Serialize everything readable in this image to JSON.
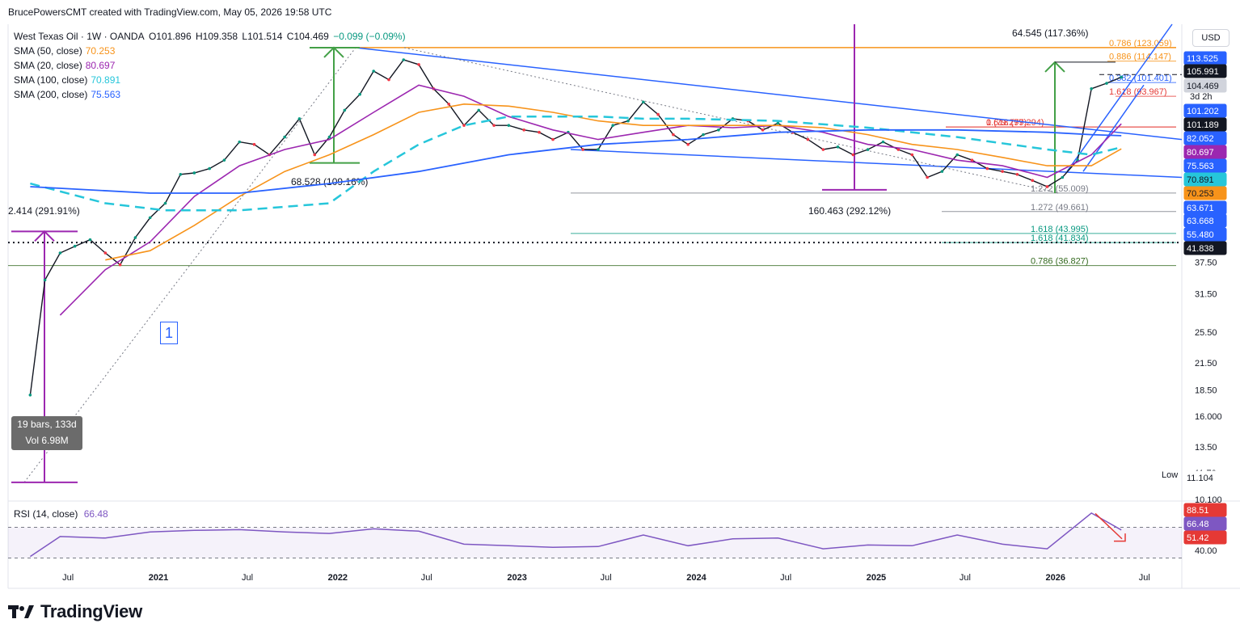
{
  "header": {
    "credit": "BrucePowersCMT created with TradingView.com, May 05, 2026 19:58 UTC"
  },
  "symbol": {
    "name": "West Texas Oil · 1W · OANDA",
    "open": "O101.896",
    "high": "H109.358",
    "low": "L101.514",
    "close": "C104.469",
    "change": "−0.099 (−0.09%)"
  },
  "indicators": [
    {
      "label": "SMA (50, close)",
      "value": "70.253",
      "color": "#f7931a"
    },
    {
      "label": "SMA (20, close)",
      "value": "80.697",
      "color": "#9c27b0"
    },
    {
      "label": "SMA (100, close)",
      "value": "70.891",
      "color": "#26c6da"
    },
    {
      "label": "SMA (200, close)",
      "value": "75.563",
      "color": "#2962ff"
    }
  ],
  "currency_button": "USD",
  "rsi": {
    "label": "RSI (14, close)",
    "value": "66.48",
    "color": "#7e57c2"
  },
  "brand": "TradingView",
  "annotations": {
    "wave_label": "1",
    "measure_line1": "19 bars, 133d",
    "measure_line2": "Vol 6.98M",
    "move_2020_pct": "2.414 (291.91%)",
    "move_2021_2022": "68.528 (109.16%)",
    "move_total": "160.463 (292.12%)",
    "move_2026": "64.545 (117.36%)",
    "low_label": "Low"
  },
  "fib_labels": [
    {
      "text": "0.786 (123.059)",
      "price": 123.059,
      "color": "#f7931a"
    },
    {
      "text": "0.886 (114.147)",
      "price": 114.147,
      "color": "#f7931a"
    },
    {
      "text": "0.382 (101.401)",
      "price": 101.401,
      "color": "#2962ff"
    },
    {
      "text": "1.618 (93.967)",
      "price": 93.967,
      "color": "#e53935"
    },
    {
      "text": "0.618 (79.294)",
      "price": 79.294,
      "color": "#e53935"
    },
    {
      "text": "1 (79.297)",
      "price": 79.297,
      "color": "#e53935"
    },
    {
      "text": "1.272 (55.009)",
      "price": 55.009,
      "color": "#787b86"
    },
    {
      "text": "1.272 (49.661)",
      "price": 49.661,
      "color": "#787b86"
    },
    {
      "text": "1.618 (43.995)",
      "price": 43.995,
      "color": "#089981"
    },
    {
      "text": "1.618 (41.834)",
      "price": 41.834,
      "color": "#089981"
    },
    {
      "text": "0.786 (36.827)",
      "price": 36.827,
      "color": "#33691e"
    }
  ],
  "price_axis_labels": [
    {
      "text": "113.525",
      "bg": "#2962ff",
      "fg": "#ffffff",
      "price": 113.525
    },
    {
      "text": "105.991",
      "bg": "#131722",
      "fg": "#ffffff",
      "price": 105.991
    },
    {
      "text": "104.469",
      "bg": "#d1d4dc",
      "fg": "#131722",
      "price": 104.469,
      "sub": "3d 2h"
    },
    {
      "text": "101.202",
      "bg": "#2962ff",
      "fg": "#ffffff",
      "price": 101.202
    },
    {
      "text": "101.189",
      "bg": "#131722",
      "fg": "#ffffff",
      "price": 101.189
    },
    {
      "text": "82.052",
      "bg": "#2962ff",
      "fg": "#ffffff",
      "price": 82.052
    },
    {
      "text": "80.697",
      "bg": "#9c27b0",
      "fg": "#ffffff",
      "price": 80.697
    },
    {
      "text": "75.563",
      "bg": "#2962ff",
      "fg": "#ffffff",
      "price": 75.563
    },
    {
      "text": "70.891",
      "bg": "#26c6da",
      "fg": "#131722",
      "price": 70.891
    },
    {
      "text": "70.253",
      "bg": "#f7931a",
      "fg": "#131722",
      "price": 70.253
    },
    {
      "text": "63.671",
      "bg": "#2962ff",
      "fg": "#ffffff",
      "price": 63.671
    },
    {
      "text": "63.668",
      "bg": "#2962ff",
      "fg": "#ffffff",
      "price": 63.668
    },
    {
      "text": "55.480",
      "bg": "#2962ff",
      "fg": "#ffffff",
      "price": 55.48
    },
    {
      "text": "41.838",
      "bg": "#131722",
      "fg": "#ffffff",
      "price": 41.838
    },
    {
      "text": "11.104",
      "bg": "#ffffff",
      "fg": "#131722",
      "price": 11.104
    }
  ],
  "rsi_axis_labels": [
    {
      "text": "88.51",
      "bg": "#e53935",
      "fg": "#ffffff",
      "value": 88.51
    },
    {
      "text": "66.48",
      "bg": "#7e57c2",
      "fg": "#ffffff",
      "value": 66.48
    },
    {
      "text": "51.42",
      "bg": "#e53935",
      "fg": "#ffffff",
      "value": 51.42
    }
  ],
  "chart_data": {
    "type": "line",
    "scale": "log",
    "ylim": [
      10.1,
      140
    ],
    "y_ticks": [
      37.5,
      31.5,
      25.5,
      21.5,
      18.5,
      16.0,
      13.5,
      11.7,
      10.1
    ],
    "x_ticks": [
      "Jul",
      "2021",
      "Jul",
      "2022",
      "Jul",
      "2023",
      "Jul",
      "2024",
      "Jul",
      "2025",
      "Jul",
      "2026",
      "Jul"
    ],
    "rsi_ticks": [
      40.0
    ],
    "series": [
      {
        "name": "West Texas Oil",
        "x": [
          "2020-04",
          "2020-05",
          "2020-06",
          "2020-07",
          "2020-08",
          "2020-09",
          "2020-10",
          "2020-11",
          "2020-12",
          "2021-01",
          "2021-02",
          "2021-03",
          "2021-04",
          "2021-05",
          "2021-06",
          "2021-07",
          "2021-08",
          "2021-09",
          "2021-10",
          "2021-11",
          "2021-12",
          "2022-01",
          "2022-02",
          "2022-03",
          "2022-04",
          "2022-05",
          "2022-06",
          "2022-07",
          "2022-08",
          "2022-09",
          "2022-10",
          "2022-11",
          "2022-12",
          "2023-01",
          "2023-02",
          "2023-03",
          "2023-04",
          "2023-05",
          "2023-06",
          "2023-07",
          "2023-08",
          "2023-09",
          "2023-10",
          "2023-11",
          "2023-12",
          "2024-01",
          "2024-02",
          "2024-03",
          "2024-04",
          "2024-05",
          "2024-06",
          "2024-07",
          "2024-08",
          "2024-09",
          "2024-10",
          "2024-11",
          "2024-12",
          "2025-01",
          "2025-02",
          "2025-03",
          "2025-04",
          "2025-05",
          "2025-06",
          "2025-07",
          "2025-08",
          "2025-09",
          "2025-10",
          "2025-11",
          "2025-12",
          "2026-01",
          "2026-02",
          "2026-03",
          "2026-04",
          "2026-05"
        ],
        "values": [
          18.0,
          34.0,
          39.5,
          41.0,
          42.5,
          39.5,
          37.0,
          43.0,
          48.0,
          52.0,
          61.0,
          61.5,
          63.0,
          66.0,
          73.0,
          72.0,
          68.0,
          75.0,
          83.0,
          68.0,
          75.0,
          87.0,
          95.0,
          108.0,
          103.0,
          115.0,
          112.0,
          98.0,
          90.0,
          80.0,
          87.0,
          80.0,
          80.0,
          78.0,
          77.0,
          74.0,
          77.0,
          70.0,
          70.0,
          80.0,
          82.0,
          91.0,
          85.0,
          76.0,
          72.0,
          76.0,
          78.0,
          83.0,
          82.0,
          78.0,
          81.0,
          77.0,
          74.0,
          70.0,
          71.0,
          68.0,
          70.0,
          73.0,
          70.0,
          68.0,
          60.0,
          62.0,
          68.0,
          66.0,
          63.0,
          62.0,
          61.0,
          59.0,
          57.0,
          60.0,
          66.0,
          98.0,
          101.0,
          104.469
        ]
      },
      {
        "name": "SMA (20, close)",
        "x": [
          "2020-06",
          "2020-09",
          "2020-12",
          "2021-03",
          "2021-06",
          "2021-09",
          "2021-12",
          "2022-03",
          "2022-06",
          "2022-09",
          "2022-12",
          "2023-03",
          "2023-06",
          "2023-09",
          "2023-12",
          "2024-03",
          "2024-06",
          "2024-09",
          "2024-12",
          "2025-03",
          "2025-06",
          "2025-09",
          "2025-12",
          "2026-03",
          "2026-05"
        ],
        "values": [
          28,
          36,
          42,
          54,
          64,
          70,
          74,
          86,
          100,
          94,
          84,
          78,
          74,
          77,
          80,
          79,
          80,
          77,
          72,
          70,
          66,
          64,
          60,
          68,
          80.697
        ]
      },
      {
        "name": "SMA (50, close)",
        "x": [
          "2020-09",
          "2020-12",
          "2021-03",
          "2021-06",
          "2021-09",
          "2021-12",
          "2022-03",
          "2022-06",
          "2022-09",
          "2022-12",
          "2023-03",
          "2023-06",
          "2023-09",
          "2023-12",
          "2024-03",
          "2024-06",
          "2024-09",
          "2024-12",
          "2025-03",
          "2025-06",
          "2025-09",
          "2025-12",
          "2026-03",
          "2026-05"
        ],
        "values": [
          38,
          40,
          46,
          54,
          62,
          68,
          76,
          86,
          90,
          89,
          86,
          82,
          80,
          80,
          80,
          80,
          79,
          76,
          72,
          70,
          67,
          64,
          64,
          70.253
        ]
      },
      {
        "name": "SMA (100, close)",
        "x": [
          "2020-04",
          "2020-09",
          "2021-01",
          "2021-06",
          "2021-12",
          "2022-03",
          "2022-06",
          "2022-09",
          "2022-12",
          "2023-03",
          "2023-06",
          "2023-09",
          "2023-12",
          "2024-06",
          "2024-12",
          "2025-06",
          "2025-12",
          "2026-03",
          "2026-05"
        ],
        "values": [
          58,
          52,
          50,
          50,
          52,
          62,
          72,
          80,
          84,
          84,
          84,
          83,
          83,
          82,
          79,
          75,
          70,
          68,
          70.891
        ]
      },
      {
        "name": "SMA (200, close)",
        "x": [
          "2020-04",
          "2020-12",
          "2021-06",
          "2021-12",
          "2022-06",
          "2022-12",
          "2023-06",
          "2023-12",
          "2024-06",
          "2024-12",
          "2025-06",
          "2025-12",
          "2026-03",
          "2026-05"
        ],
        "values": [
          57,
          55,
          55,
          58,
          62,
          68,
          72,
          74,
          77,
          78,
          78,
          77,
          76,
          75.563
        ]
      },
      {
        "name": "RSI (14, close)",
        "x": [
          "2020-04",
          "2020-06",
          "2020-09",
          "2020-12",
          "2021-03",
          "2021-06",
          "2021-09",
          "2021-12",
          "2022-03",
          "2022-06",
          "2022-09",
          "2022-12",
          "2023-03",
          "2023-06",
          "2023-09",
          "2023-12",
          "2024-03",
          "2024-06",
          "2024-09",
          "2024-12",
          "2025-03",
          "2025-06",
          "2025-09",
          "2025-12",
          "2026-03",
          "2026-05"
        ],
        "values": [
          32,
          58,
          56,
          64,
          66,
          67,
          64,
          62,
          68,
          65,
          48,
          46,
          44,
          45,
          60,
          46,
          55,
          56,
          42,
          47,
          46,
          60,
          48,
          42,
          88.51,
          66.48
        ]
      }
    ]
  }
}
